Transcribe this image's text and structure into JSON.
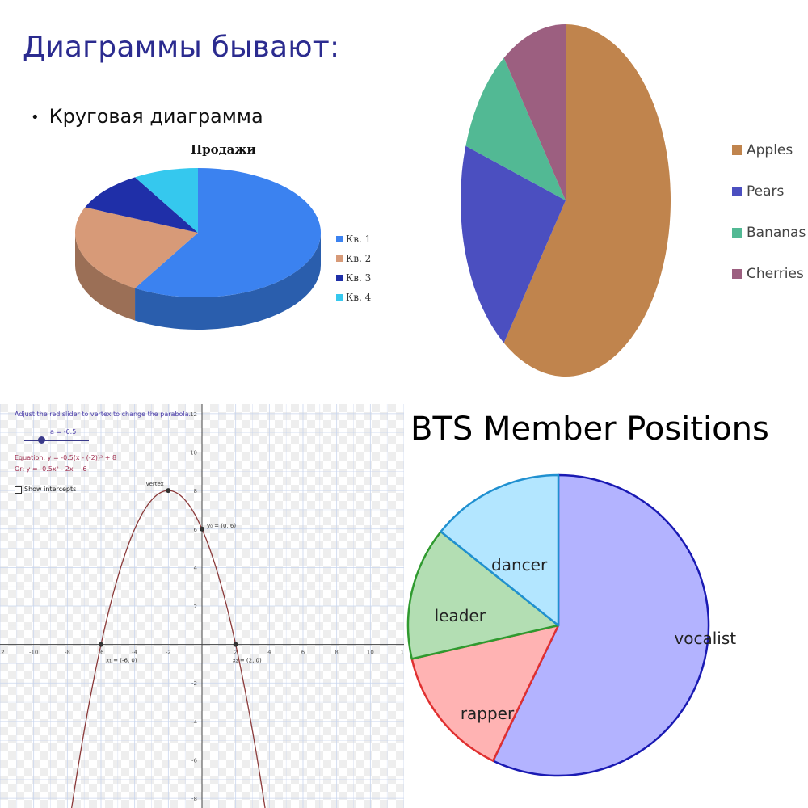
{
  "slide": {
    "title": "Диаграммы бывают:",
    "bullet": "Круговая диаграмма"
  },
  "chart_data": [
    {
      "type": "pie",
      "title": "Продажи",
      "style": "3d",
      "categories": [
        "Кв. 1",
        "Кв. 2",
        "Кв. 3",
        "Кв. 4"
      ],
      "values": [
        8.2,
        3.2,
        1.4,
        1.2
      ],
      "colors": [
        "#3b82f0",
        "#d79a78",
        "#1f2fa8",
        "#35c8ee"
      ],
      "legend_position": "right"
    },
    {
      "type": "pie",
      "title": "",
      "categories": [
        "Apples",
        "Pears",
        "Bananas",
        "Cherries"
      ],
      "values": [
        60,
        20,
        10,
        10
      ],
      "colors": [
        "#c0844d",
        "#4b4fc0",
        "#52b994",
        "#9c5f80"
      ],
      "legend_position": "right"
    },
    {
      "type": "line",
      "title": "",
      "series": [
        {
          "name": "",
          "equation": "y = -0.5x² - 2x + 6",
          "x_range": [
            -12,
            12
          ],
          "color": "#8b3a3a"
        }
      ],
      "points": [
        {
          "label": "Vertex",
          "x": -2,
          "y": 8
        },
        {
          "label": "y₀ = (0, 6)",
          "x": 0,
          "y": 6
        },
        {
          "label": "x₁ = (-6, 0)",
          "x": -6,
          "y": 0
        },
        {
          "label": "x₂ = (2, 0)",
          "x": 2,
          "y": 0
        }
      ],
      "x_ticks": [
        -12,
        -10,
        -8,
        -6,
        -4,
        -2,
        0,
        2,
        4,
        6,
        8,
        10,
        12
      ],
      "y_ticks": [
        12,
        10,
        8,
        6,
        4,
        2,
        0,
        -2,
        -4,
        -6,
        -8
      ],
      "xlim": [
        -12,
        12
      ],
      "ylim": [
        -8.5,
        12.5
      ],
      "grid": true,
      "annotations": {
        "instruction": "Adjust the red slider to vertex to change the parabola.",
        "slider_label": "a = -0.5",
        "equation_vertex": "Equation: y = -0.5(x - (-2))² + 8",
        "equation_standard": "Or: y = -0.5x² - 2x + 6",
        "checkbox_label": "Show intercepts"
      }
    },
    {
      "type": "pie",
      "title": "BTS Member Positions",
      "categories": [
        "vocalist",
        "rapper",
        "leader",
        "dancer"
      ],
      "values": [
        4,
        1,
        1,
        1
      ],
      "colors": [
        "#b3b3ff",
        "#ffb3b3",
        "#b3deb3",
        "#b3e6ff"
      ],
      "stroke_colors": [
        "#1a1ab3",
        "#e03030",
        "#2f9a2f",
        "#2090d0"
      ],
      "legend_position": "none"
    }
  ]
}
